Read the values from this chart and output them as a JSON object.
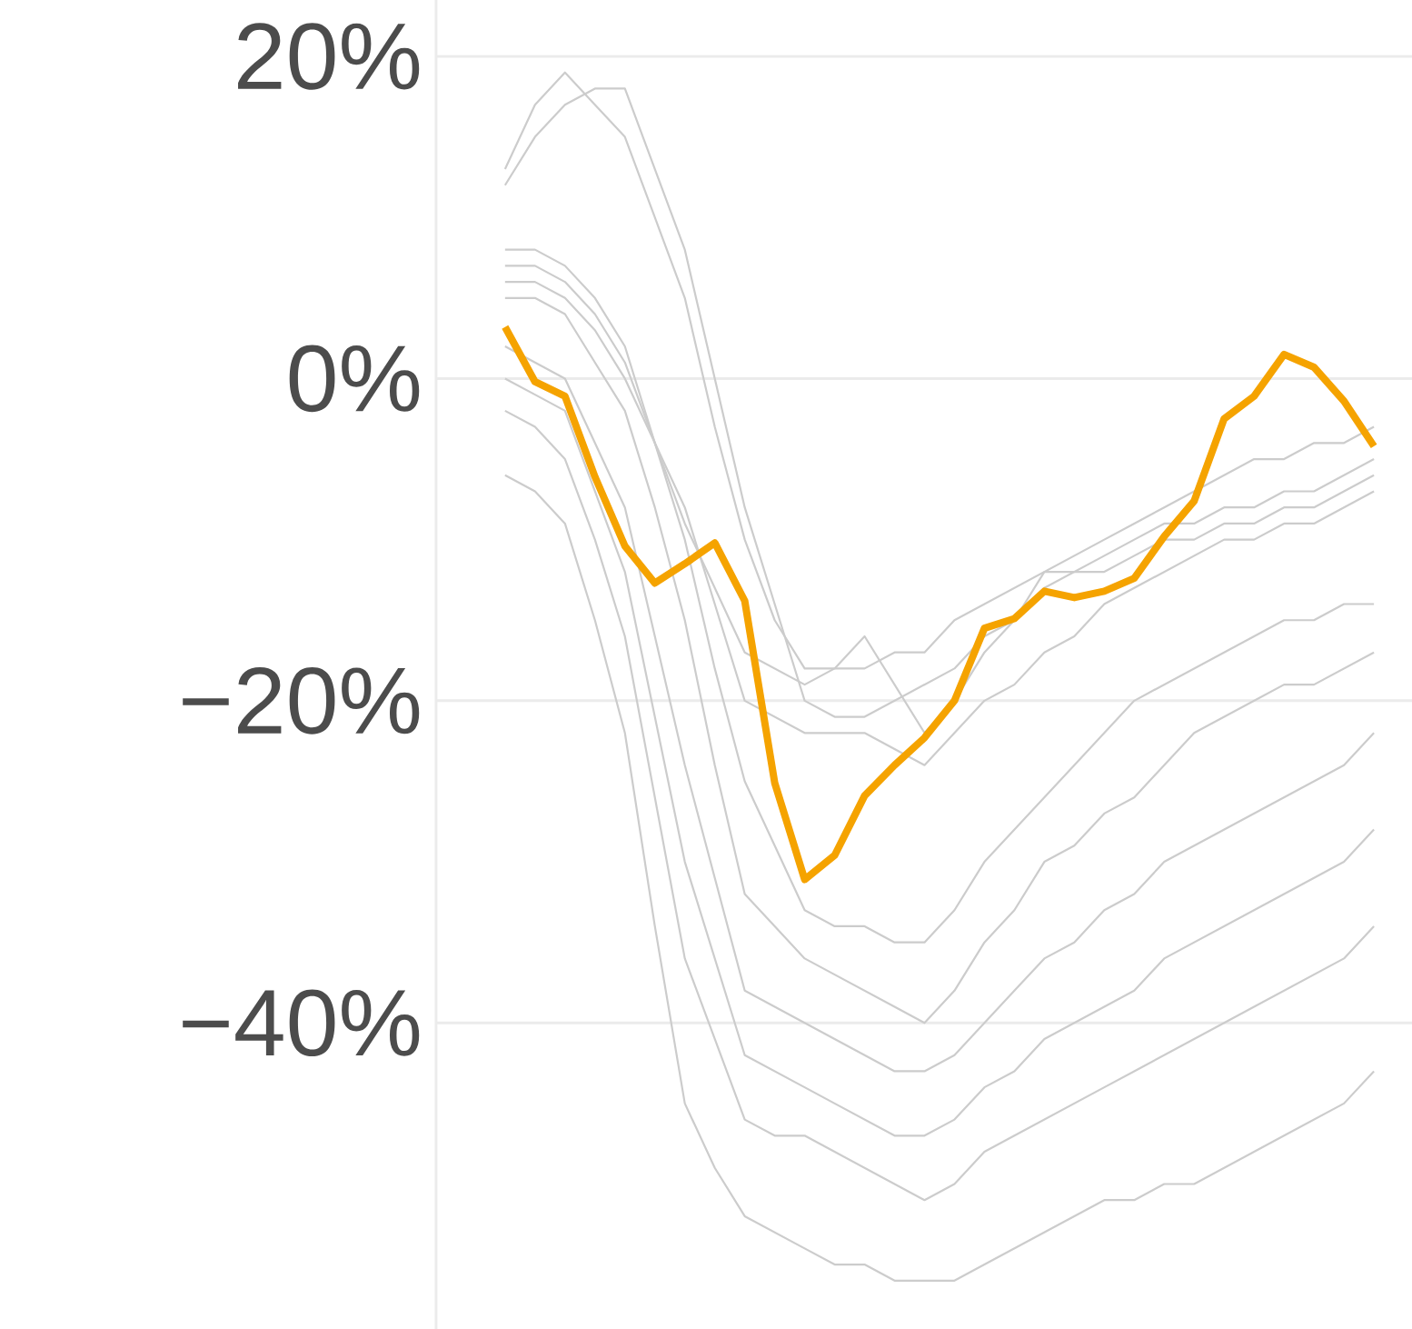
{
  "chart_data": {
    "type": "line",
    "categories": [
      null,
      null,
      null,
      null,
      null,
      null,
      null,
      null,
      null,
      null,
      null,
      null,
      null,
      null,
      null,
      null,
      null,
      null,
      null,
      null,
      null,
      null,
      null,
      null,
      null,
      null,
      null,
      null,
      null,
      null
    ],
    "ylim": [
      -59,
      23.5
    ],
    "yticks": [
      {
        "value": -40,
        "label": "−40%"
      },
      {
        "value": -20,
        "label": "−20%"
      },
      {
        "value": 0,
        "label": "0%"
      },
      {
        "value": 20,
        "label": "20%"
      }
    ],
    "grid": "y",
    "tick_labels": "y",
    "series": [
      {
        "color": "#cccccc",
        "values": [
          13,
          17,
          19,
          17,
          15,
          10,
          5,
          -3,
          -10,
          -15,
          -18,
          -18,
          -18,
          -17,
          -17,
          -15,
          -14,
          -13,
          -12,
          -11,
          -10,
          -9,
          -8,
          -7,
          -6,
          -5,
          -5,
          -4,
          -4,
          -3
        ]
      },
      {
        "color": "#cccccc",
        "values": [
          12,
          15,
          17,
          18,
          18,
          13,
          8,
          0,
          -8,
          -14,
          -20,
          -21,
          -21,
          -20,
          -19,
          -18,
          -16,
          -15,
          -13,
          -12,
          -11,
          -10,
          -9,
          -9,
          -8,
          -8,
          -7,
          -7,
          -6,
          -5
        ]
      },
      {
        "color": "#cccccc",
        "values": [
          8,
          8,
          7,
          5,
          2,
          -4,
          -10,
          -18,
          -25,
          -29,
          -33,
          -34,
          -34,
          -35,
          -35,
          -33,
          -30,
          -28,
          -26,
          -24,
          -22,
          -20,
          -19,
          -18,
          -17,
          -16,
          -15,
          -15,
          -14,
          -14
        ]
      },
      {
        "color": "#cccccc",
        "values": [
          5,
          5,
          4,
          1,
          -2,
          -8,
          -15,
          -24,
          -32,
          -34,
          -36,
          -37,
          -38,
          -39,
          -40,
          -38,
          -35,
          -33,
          -30,
          -29,
          -27,
          -26,
          -24,
          -22,
          -21,
          -20,
          -19,
          -19,
          -18,
          -17
        ]
      },
      {
        "color": "#cccccc",
        "values": [
          2,
          1,
          0,
          -4,
          -8,
          -16,
          -24,
          -31,
          -38,
          -39,
          -40,
          -41,
          -42,
          -43,
          -43,
          -42,
          -40,
          -38,
          -36,
          -35,
          -33,
          -32,
          -30,
          -29,
          -28,
          -27,
          -26,
          -25,
          -24,
          -22
        ]
      },
      {
        "color": "#cccccc",
        "values": [
          0,
          -1,
          -2,
          -7,
          -12,
          -21,
          -30,
          -36,
          -42,
          -43,
          -44,
          -45,
          -46,
          -47,
          -47,
          -46,
          -44,
          -43,
          -41,
          -40,
          -39,
          -38,
          -36,
          -35,
          -34,
          -33,
          -32,
          -31,
          -30,
          -28
        ]
      },
      {
        "color": "#cccccc",
        "values": [
          -2,
          -3,
          -5,
          -10,
          -16,
          -26,
          -36,
          -41,
          -46,
          -47,
          -47,
          -48,
          -49,
          -50,
          -51,
          -50,
          -48,
          -47,
          -46,
          -45,
          -44,
          -43,
          -42,
          -41,
          -40,
          -39,
          -38,
          -37,
          -36,
          -34
        ]
      },
      {
        "color": "#cccccc",
        "values": [
          -6,
          -7,
          -9,
          -15,
          -22,
          -34,
          -45,
          -49,
          -52,
          -53,
          -54,
          -55,
          -55,
          -56,
          -56,
          -56,
          -55,
          -54,
          -53,
          -52,
          -51,
          -51,
          -50,
          -50,
          -49,
          -48,
          -47,
          -46,
          -45,
          -43
        ]
      },
      {
        "color": "#cccccc",
        "values": [
          6,
          6,
          5,
          3,
          0,
          -4,
          -8,
          -14,
          -20,
          -21,
          -22,
          -22,
          -22,
          -23,
          -24,
          -22,
          -20,
          -19,
          -17,
          -16,
          -14,
          -13,
          -12,
          -11,
          -10,
          -10,
          -9,
          -9,
          -8,
          -7
        ]
      },
      {
        "color": "#cccccc",
        "values": [
          7,
          7,
          6,
          4,
          1,
          -4,
          -9,
          -13,
          -17,
          -18,
          -19,
          -18,
          -16,
          -19,
          -22,
          -20,
          -17,
          -15,
          -12,
          -12,
          -12,
          -11,
          -10,
          -10,
          -9,
          -9,
          -8,
          -8,
          -7,
          -6
        ]
      },
      {
        "color": "#f5a300",
        "values": [
          3.2,
          -0.2,
          -1.1,
          -6.1,
          -10.4,
          -12.7,
          -11.5,
          -10.2,
          -13.8,
          -25.1,
          -31.1,
          -29.6,
          -25.9,
          -24,
          -22.3,
          -20,
          -15.5,
          -14.9,
          -13.2,
          -13.6,
          -13.2,
          -12.4,
          -9.8,
          -7.6,
          -2.5,
          -1.1,
          1.5,
          0.7,
          -1.4,
          -4.2
        ]
      }
    ]
  }
}
